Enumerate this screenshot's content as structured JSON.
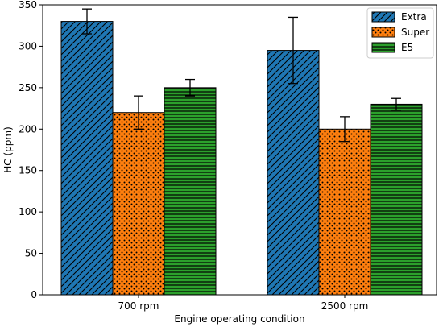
{
  "chart_data": {
    "type": "bar",
    "categories": [
      "700 rpm",
      "2500 rpm"
    ],
    "series": [
      {
        "name": "Extra",
        "values": [
          330,
          295
        ],
        "errors": [
          15,
          40
        ],
        "color": "#1f77b4",
        "hatch": "diagonal"
      },
      {
        "name": "Super",
        "values": [
          220,
          200
        ],
        "errors": [
          20,
          15
        ],
        "color": "#ff7f0e",
        "hatch": "dots"
      },
      {
        "name": "E5",
        "values": [
          250,
          230
        ],
        "errors": [
          10,
          7
        ],
        "color": "#2ca02c",
        "hatch": "horizontal"
      }
    ],
    "xlabel": "Engine operating condition",
    "ylabel": "HC (ppm)",
    "ylim": [
      0,
      350
    ],
    "yticks": [
      0,
      50,
      100,
      150,
      200,
      250,
      300,
      350
    ],
    "legend_position": "top-right",
    "grid": false
  }
}
